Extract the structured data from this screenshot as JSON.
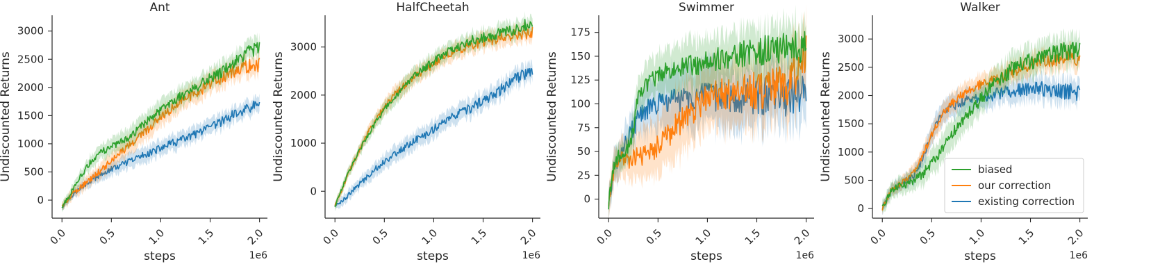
{
  "colors": {
    "biased": "#2ca02c",
    "our correction": "#ff7f0e",
    "existing correction": "#1f77b4"
  },
  "legend": {
    "panel": 3,
    "placement": "lower-right",
    "entries": [
      "biased",
      "our correction",
      "existing correction"
    ]
  },
  "chart_data": [
    {
      "type": "line",
      "title": "Ant",
      "xlabel": "steps",
      "ylabel": "Undiscounted Returns",
      "x_offset_label": "1e6",
      "xlim": [
        -0.1,
        2.08
      ],
      "ylim": [
        -320,
        3280
      ],
      "xticks": [
        0.0,
        0.5,
        1.0,
        1.5,
        2.0
      ],
      "xtick_labels": [
        "0.0",
        "0.5",
        "1.0",
        "1.5",
        "2.0"
      ],
      "yticks": [
        0,
        500,
        1000,
        1500,
        2000,
        2500,
        3000
      ],
      "ytick_labels": [
        "0",
        "500",
        "1000",
        "1500",
        "2000",
        "2500",
        "3000"
      ],
      "x": [
        0,
        0.1,
        0.2,
        0.3,
        0.4,
        0.5,
        0.6,
        0.7,
        0.8,
        0.9,
        1.0,
        1.1,
        1.2,
        1.3,
        1.4,
        1.5,
        1.6,
        1.7,
        1.8,
        1.9,
        2.0
      ],
      "series": [
        {
          "name": "biased",
          "values": [
            -120,
            150,
            450,
            700,
            850,
            950,
            1030,
            1150,
            1300,
            1450,
            1600,
            1720,
            1850,
            1950,
            2050,
            2150,
            2250,
            2400,
            2500,
            2650,
            2700
          ],
          "band": 150
        },
        {
          "name": "our correction",
          "values": [
            -120,
            100,
            250,
            380,
            550,
            700,
            850,
            1000,
            1150,
            1300,
            1450,
            1600,
            1750,
            1850,
            1950,
            2050,
            2150,
            2250,
            2320,
            2380,
            2400
          ],
          "band": 150
        },
        {
          "name": "existing correction",
          "values": [
            -120,
            80,
            230,
            350,
            450,
            550,
            620,
            700,
            780,
            850,
            920,
            1000,
            1060,
            1130,
            1200,
            1280,
            1380,
            1480,
            1560,
            1640,
            1700
          ],
          "band": 120
        }
      ]
    },
    {
      "type": "line",
      "title": "HalfCheetah",
      "xlabel": "steps",
      "ylabel": "Undiscounted Returns",
      "x_offset_label": "1e6",
      "xlim": [
        -0.1,
        2.08
      ],
      "ylim": [
        -560,
        3660
      ],
      "xticks": [
        0.0,
        0.5,
        1.0,
        1.5,
        2.0
      ],
      "xtick_labels": [
        "0.0",
        "0.5",
        "1.0",
        "1.5",
        "2.0"
      ],
      "yticks": [
        0,
        1000,
        2000,
        3000
      ],
      "ytick_labels": [
        "0",
        "1000",
        "2000",
        "3000"
      ],
      "x": [
        0,
        0.1,
        0.2,
        0.3,
        0.4,
        0.5,
        0.6,
        0.7,
        0.8,
        0.9,
        1.0,
        1.1,
        1.2,
        1.3,
        1.4,
        1.5,
        1.6,
        1.7,
        1.8,
        1.9,
        2.0
      ],
      "series": [
        {
          "name": "biased",
          "values": [
            -300,
            200,
            650,
            1050,
            1400,
            1700,
            1950,
            2200,
            2400,
            2550,
            2700,
            2850,
            2950,
            3050,
            3150,
            3200,
            3250,
            3300,
            3350,
            3450,
            3500
          ],
          "band": 150
        },
        {
          "name": "our correction",
          "values": [
            -300,
            200,
            650,
            1100,
            1450,
            1750,
            2000,
            2200,
            2380,
            2500,
            2650,
            2800,
            2900,
            2980,
            3050,
            3100,
            3150,
            3200,
            3250,
            3280,
            3300
          ],
          "band": 150
        },
        {
          "name": "existing correction",
          "values": [
            -300,
            -150,
            50,
            250,
            450,
            620,
            770,
            900,
            1050,
            1150,
            1300,
            1450,
            1550,
            1650,
            1750,
            1880,
            2000,
            2150,
            2300,
            2420,
            2550
          ],
          "band": 160
        }
      ]
    },
    {
      "type": "line",
      "title": "Swimmer",
      "xlabel": "steps",
      "ylabel": "Undiscounted Returns",
      "x_offset_label": "1e6",
      "xlim": [
        -0.1,
        2.08
      ],
      "ylim": [
        -20,
        193
      ],
      "xticks": [
        0.0,
        0.5,
        1.0,
        1.5,
        2.0
      ],
      "xtick_labels": [
        "0.0",
        "0.5",
        "1.0",
        "1.5",
        "2.0"
      ],
      "yticks": [
        0,
        25,
        50,
        75,
        100,
        125,
        150,
        175
      ],
      "ytick_labels": [
        "0",
        "25",
        "50",
        "75",
        "100",
        "125",
        "150",
        "175"
      ],
      "x": [
        0,
        0.05,
        0.1,
        0.2,
        0.25,
        0.3,
        0.4,
        0.5,
        0.6,
        0.7,
        0.8,
        0.9,
        1.0,
        1.1,
        1.2,
        1.3,
        1.4,
        1.5,
        1.6,
        1.7,
        1.8,
        1.9,
        2.0
      ],
      "series": [
        {
          "name": "biased",
          "values": [
            -5,
            35,
            45,
            55,
            70,
            110,
            122,
            130,
            135,
            138,
            140,
            142,
            145,
            148,
            150,
            152,
            154,
            155,
            157,
            158,
            160,
            160,
            160
          ],
          "band": 22
        },
        {
          "name": "our correction",
          "values": [
            -5,
            30,
            40,
            42,
            43,
            44,
            48,
            55,
            65,
            80,
            85,
            100,
            105,
            108,
            110,
            112,
            113,
            115,
            116,
            117,
            120,
            135,
            150
          ],
          "band": 30
        },
        {
          "name": "existing correction",
          "values": [
            -5,
            30,
            45,
            65,
            75,
            85,
            95,
            100,
            103,
            105,
            106,
            106,
            107,
            107,
            108,
            108,
            108,
            108,
            108,
            108,
            108,
            109,
            110
          ],
          "band": 28
        }
      ]
    },
    {
      "type": "line",
      "title": "Walker",
      "xlabel": "steps",
      "ylabel": "Undiscounted Returns",
      "x_offset_label": "1e6",
      "xlim": [
        -0.1,
        2.08
      ],
      "ylim": [
        -170,
        3420
      ],
      "xticks": [
        0.0,
        0.5,
        1.0,
        1.5,
        2.0
      ],
      "xtick_labels": [
        "0.0",
        "0.5",
        "1.0",
        "1.5",
        "2.0"
      ],
      "yticks": [
        0,
        500,
        1000,
        1500,
        2000,
        2500,
        3000
      ],
      "ytick_labels": [
        "0",
        "500",
        "1000",
        "1500",
        "2000",
        "2500",
        "3000"
      ],
      "x": [
        0,
        0.1,
        0.2,
        0.3,
        0.4,
        0.5,
        0.6,
        0.7,
        0.8,
        0.9,
        1.0,
        1.1,
        1.2,
        1.3,
        1.4,
        1.5,
        1.6,
        1.7,
        1.8,
        1.9,
        2.0
      ],
      "series": [
        {
          "name": "biased",
          "values": [
            0,
            350,
            400,
            450,
            600,
            800,
            1050,
            1300,
            1550,
            1750,
            1950,
            2150,
            2300,
            2450,
            2550,
            2600,
            2650,
            2700,
            2750,
            2800,
            2850
          ],
          "band": 220
        },
        {
          "name": "our correction",
          "values": [
            0,
            350,
            450,
            600,
            900,
            1300,
            1650,
            1850,
            2000,
            2100,
            2200,
            2250,
            2300,
            2400,
            2500,
            2550,
            2600,
            2620,
            2650,
            2650,
            2600
          ],
          "band": 160
        },
        {
          "name": "existing correction",
          "values": [
            0,
            350,
            450,
            550,
            850,
            1350,
            1650,
            1800,
            1880,
            1930,
            1970,
            2000,
            2050,
            2080,
            2100,
            2120,
            2120,
            2100,
            2080,
            2070,
            2050
          ],
          "band": 180
        }
      ]
    }
  ]
}
